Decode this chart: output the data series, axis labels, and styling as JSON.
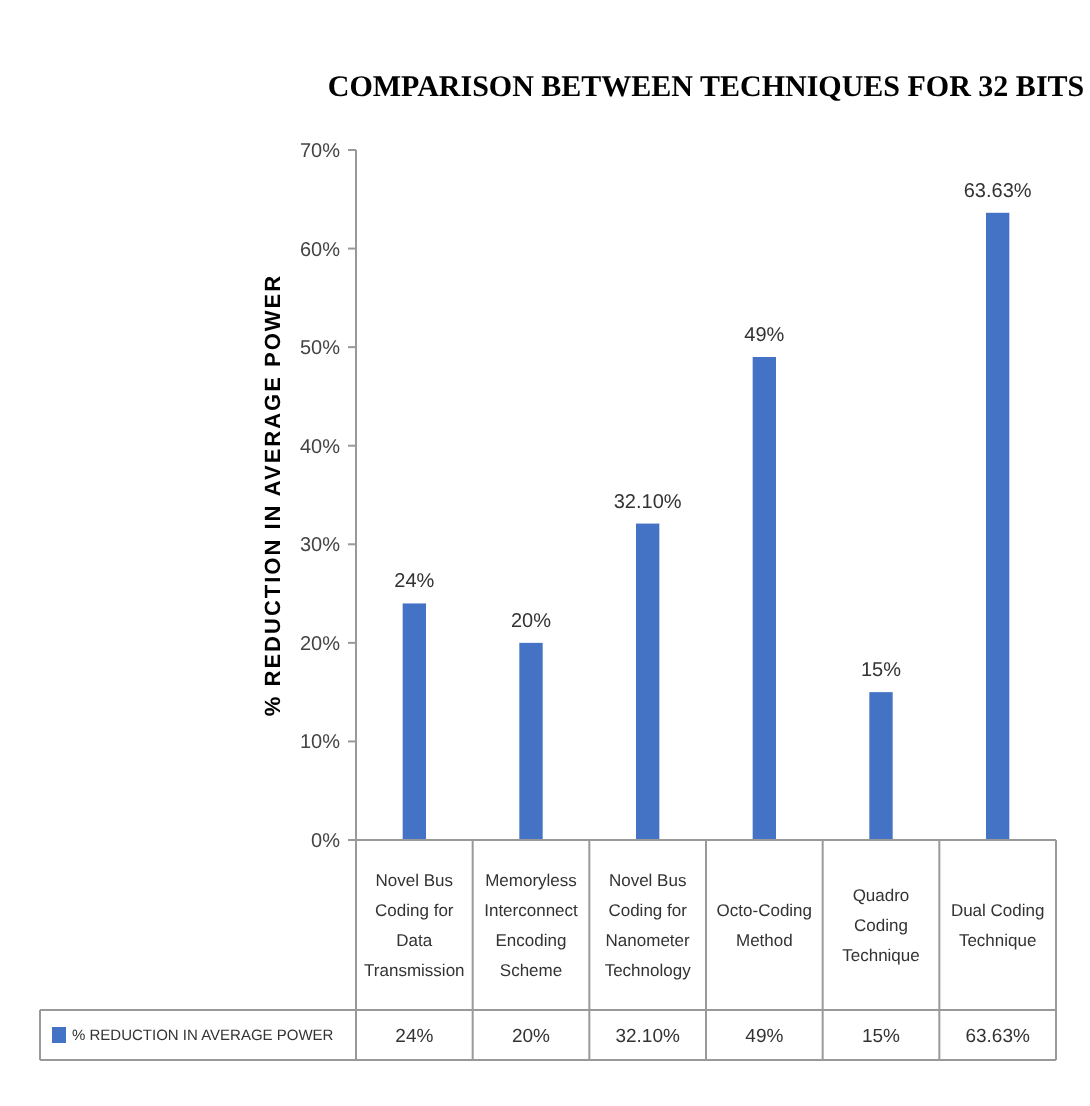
{
  "chart_data": {
    "type": "bar",
    "title": "COMPARISON BETWEEN TECHNIQUES FOR 32 BITS",
    "ylabel": "% REDUCTION IN AVERAGE POWER",
    "categories": [
      "Novel Bus Coding for Data Transmission",
      "Memoryless Interconnect Encoding Scheme",
      "Novel Bus Coding for Nanometer Technology",
      "Octo-Coding Method",
      "Quadro Coding Technique",
      "Dual Coding Technique"
    ],
    "series": [
      {
        "name": "% REDUCTION IN AVERAGE POWER",
        "color": "#4472c4",
        "values": [
          24,
          20,
          32.1,
          49,
          15,
          63.63
        ],
        "value_labels": [
          "24%",
          "20%",
          "32.10%",
          "49%",
          "15%",
          "63.63%"
        ]
      }
    ],
    "ylim": [
      0,
      70
    ],
    "yticks": [
      {
        "value": 0,
        "label": "0%"
      },
      {
        "value": 10,
        "label": "10%"
      },
      {
        "value": 20,
        "label": "20%"
      },
      {
        "value": 30,
        "label": "30%"
      },
      {
        "value": 40,
        "label": "40%"
      },
      {
        "value": 50,
        "label": "50%"
      },
      {
        "value": 60,
        "label": "60%"
      },
      {
        "value": 70,
        "label": "70%"
      }
    ],
    "grid": false,
    "legend": "bottom"
  }
}
